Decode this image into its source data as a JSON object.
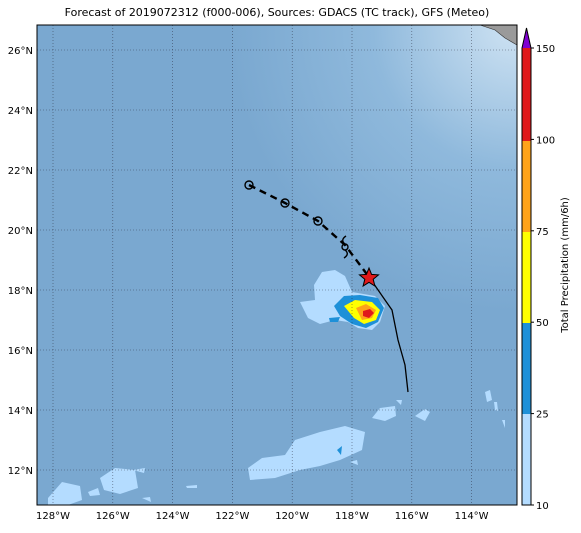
{
  "title": "Forecast of 2019072312 (f000-006), Sources: GDACS (TC track), GFS (Meteo)",
  "lon_labels": [
    "128°W",
    "126°W",
    "124°W",
    "122°W",
    "120°W",
    "118°W",
    "116°W",
    "114°W"
  ],
  "lat_labels": [
    "26°N",
    "24°N",
    "22°N",
    "20°N",
    "18°N",
    "16°N",
    "14°N",
    "12°N"
  ],
  "colorbar": {
    "label": "Total Precipitation (mm/6h)",
    "ticks": [
      10,
      25,
      50,
      75,
      100,
      150
    ]
  }
}
